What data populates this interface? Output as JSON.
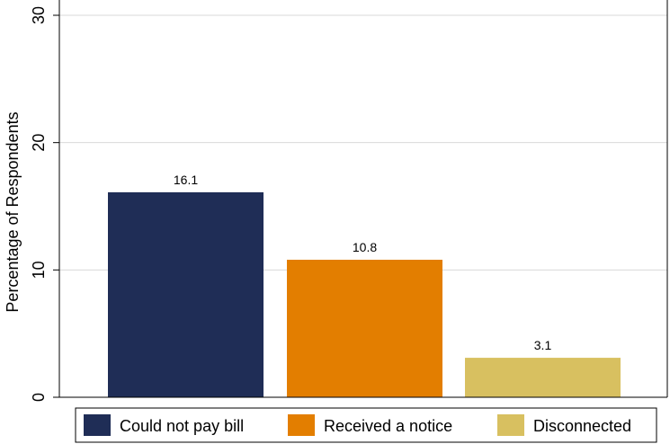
{
  "chart_data": {
    "type": "bar",
    "title": "",
    "xlabel": "",
    "ylabel": "Percentage of Respondents",
    "ylim": [
      0,
      30
    ],
    "yticks": [
      0,
      10,
      20,
      30
    ],
    "grid": true,
    "legend_position": "bottom",
    "categories": [
      "Could not pay bill",
      "Received a notice",
      "Disconnected"
    ],
    "values": [
      16.1,
      10.8,
      3.1
    ],
    "value_labels": [
      "16.1",
      "10.8",
      "3.1"
    ],
    "colors": [
      "#1f2d56",
      "#e37e00",
      "#d8c060"
    ],
    "gridline_color": "#d9d9d9",
    "axis_color": "#000000"
  }
}
